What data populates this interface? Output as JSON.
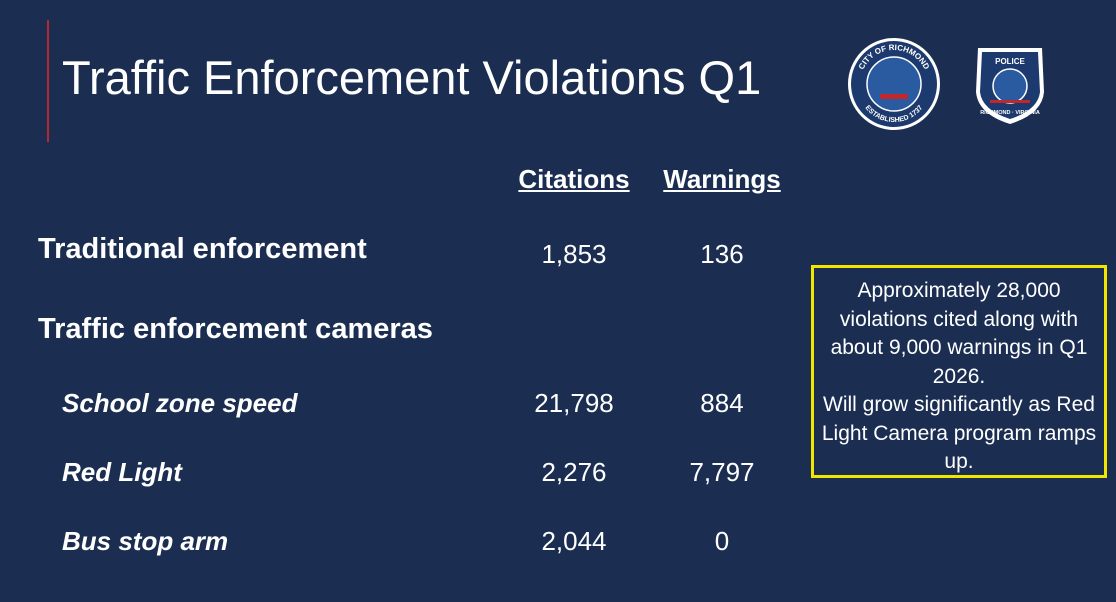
{
  "header": {
    "title": "Traffic Enforcement Violations Q1"
  },
  "logos": [
    {
      "top": "CITY OF RICHMOND",
      "bottom": "ESTABLISHED 1737"
    },
    {
      "top": "POLICE",
      "bottom": "RICHMOND · VIRGINIA"
    }
  ],
  "table": {
    "columns": [
      "Citations",
      "Warnings"
    ],
    "sections": [
      {
        "label": "Traditional enforcement",
        "citations": "1,853",
        "warnings": "136"
      },
      {
        "label": "Traffic enforcement cameras",
        "items": [
          {
            "label": "School zone speed",
            "citations": "21,798",
            "warnings": "884"
          },
          {
            "label": "Red Light",
            "citations": "2,276",
            "warnings": "7,797"
          },
          {
            "label": "Bus stop arm",
            "citations": "2,044",
            "warnings": "0"
          }
        ]
      }
    ]
  },
  "callout": {
    "paragraphs": [
      "Approximately 28,000 violations cited along with about 9,000 warnings in Q1 2026.",
      "Will grow significantly as Red Light Camera program ramps up."
    ]
  }
}
